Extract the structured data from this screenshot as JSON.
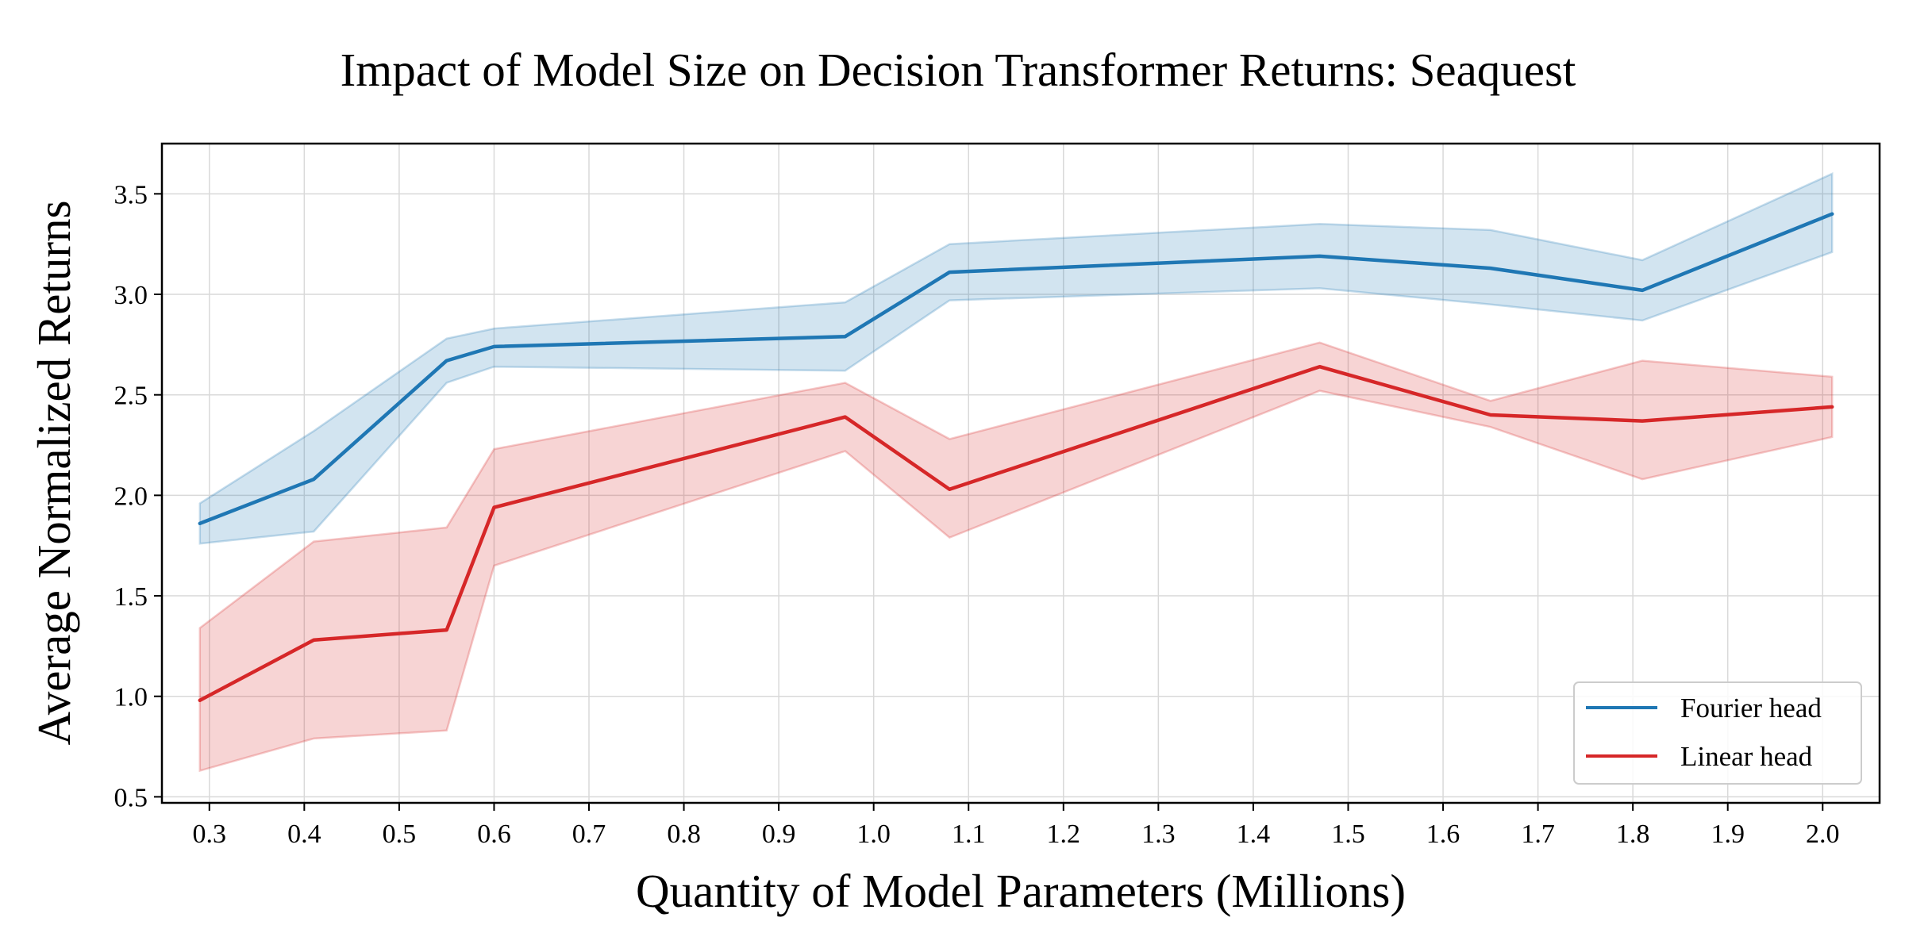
{
  "chart_data": {
    "type": "line",
    "title": "Impact of Model Size on Decision Transformer Returns: Seaquest",
    "xlabel": "Quantity of Model Parameters (Millions)",
    "ylabel": "Average Normalized Returns",
    "xlim": [
      0.25,
      2.06
    ],
    "ylim": [
      0.47,
      3.75
    ],
    "xticks": [
      0.3,
      0.4,
      0.5,
      0.6,
      0.7,
      0.8,
      0.9,
      1.0,
      1.1,
      1.2,
      1.3,
      1.4,
      1.5,
      1.6,
      1.7,
      1.8,
      1.9,
      2.0
    ],
    "xtick_labels": [
      "0.3",
      "0.4",
      "0.5",
      "0.6",
      "0.7",
      "0.8",
      "0.9",
      "1.0",
      "1.1",
      "1.2",
      "1.3",
      "1.4",
      "1.5",
      "1.6",
      "1.7",
      "1.8",
      "1.9",
      "2.0"
    ],
    "yticks": [
      0.5,
      1.0,
      1.5,
      2.0,
      2.5,
      3.0,
      3.5
    ],
    "ytick_labels": [
      "0.5",
      "1.0",
      "1.5",
      "2.0",
      "2.5",
      "3.0",
      "3.5"
    ],
    "grid": true,
    "legend_position": "bottom-right",
    "series": [
      {
        "name": "Fourier head",
        "color": "#1f77b4",
        "x": [
          0.29,
          0.41,
          0.55,
          0.6,
          0.97,
          1.08,
          1.47,
          1.65,
          1.81,
          2.01
        ],
        "y": [
          1.86,
          2.08,
          2.67,
          2.74,
          2.79,
          3.11,
          3.19,
          3.13,
          3.02,
          3.4
        ],
        "lower": [
          1.76,
          1.82,
          2.56,
          2.64,
          2.62,
          2.97,
          3.03,
          2.95,
          2.87,
          3.21
        ],
        "upper": [
          1.96,
          2.32,
          2.78,
          2.83,
          2.96,
          3.25,
          3.35,
          3.32,
          3.17,
          3.6
        ]
      },
      {
        "name": "Linear head",
        "color": "#d62728",
        "x": [
          0.29,
          0.41,
          0.55,
          0.6,
          0.97,
          1.08,
          1.47,
          1.65,
          1.81,
          2.01
        ],
        "y": [
          0.98,
          1.28,
          1.33,
          1.94,
          2.39,
          2.03,
          2.64,
          2.4,
          2.37,
          2.44
        ],
        "lower": [
          0.63,
          0.79,
          0.83,
          1.65,
          2.22,
          1.79,
          2.52,
          2.34,
          2.08,
          2.29
        ],
        "upper": [
          1.34,
          1.77,
          1.84,
          2.23,
          2.56,
          2.28,
          2.76,
          2.47,
          2.67,
          2.59
        ]
      }
    ]
  }
}
